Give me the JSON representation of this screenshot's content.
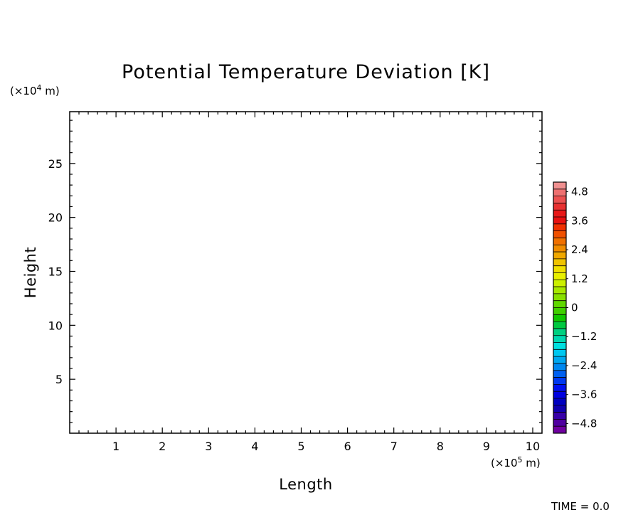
{
  "chart_data": {
    "type": "heatmap",
    "title": "Potential Temperature Deviation [K]",
    "xlabel": "Length",
    "ylabel": "Height",
    "x_multiplier": "(×10",
    "x_exponent": "5",
    "x_unit": " m)",
    "y_multiplier": "(×10",
    "y_exponent": "4",
    "y_unit": " m)",
    "xlim": [
      0,
      10.2
    ],
    "ylim": [
      0,
      29.8
    ],
    "x_ticks": [
      1,
      2,
      3,
      4,
      5,
      6,
      7,
      8,
      9,
      10
    ],
    "y_ticks": [
      5,
      10,
      15,
      20,
      25
    ],
    "grid": false,
    "field_values": "all 0 (plot area blank)",
    "colorbar": {
      "min": -5.2,
      "max": 5.2,
      "step": 0.4,
      "tick_values": [
        4.8,
        3.6,
        2.4,
        1.2,
        0,
        -1.2,
        -2.4,
        -3.6,
        -4.8
      ],
      "tick_labels": [
        "4.8",
        "3.6",
        "2.4",
        "1.2",
        "0",
        "−1.2",
        "−2.4",
        "−3.6",
        "−4.8"
      ],
      "colors": [
        "#f09090",
        "#ee7070",
        "#ec5050",
        "#e83030",
        "#e81818",
        "#e81010",
        "#f03000",
        "#f05000",
        "#f07000",
        "#f08c00",
        "#f0a800",
        "#f0c400",
        "#f0e000",
        "#e8f000",
        "#ccf000",
        "#a8e800",
        "#88e000",
        "#60d800",
        "#40d000",
        "#10c800",
        "#00c840",
        "#00d080",
        "#00d8b0",
        "#00e0e0",
        "#00c8f0",
        "#00a8f0",
        "#0088f0",
        "#0060f0",
        "#0038f0",
        "#0010f0",
        "#0000e0",
        "#0000c0",
        "#1000b0",
        "#3800a8",
        "#5000a0",
        "#7000a0"
      ]
    },
    "time_label": "TIME =",
    "time_value": "0.0"
  }
}
